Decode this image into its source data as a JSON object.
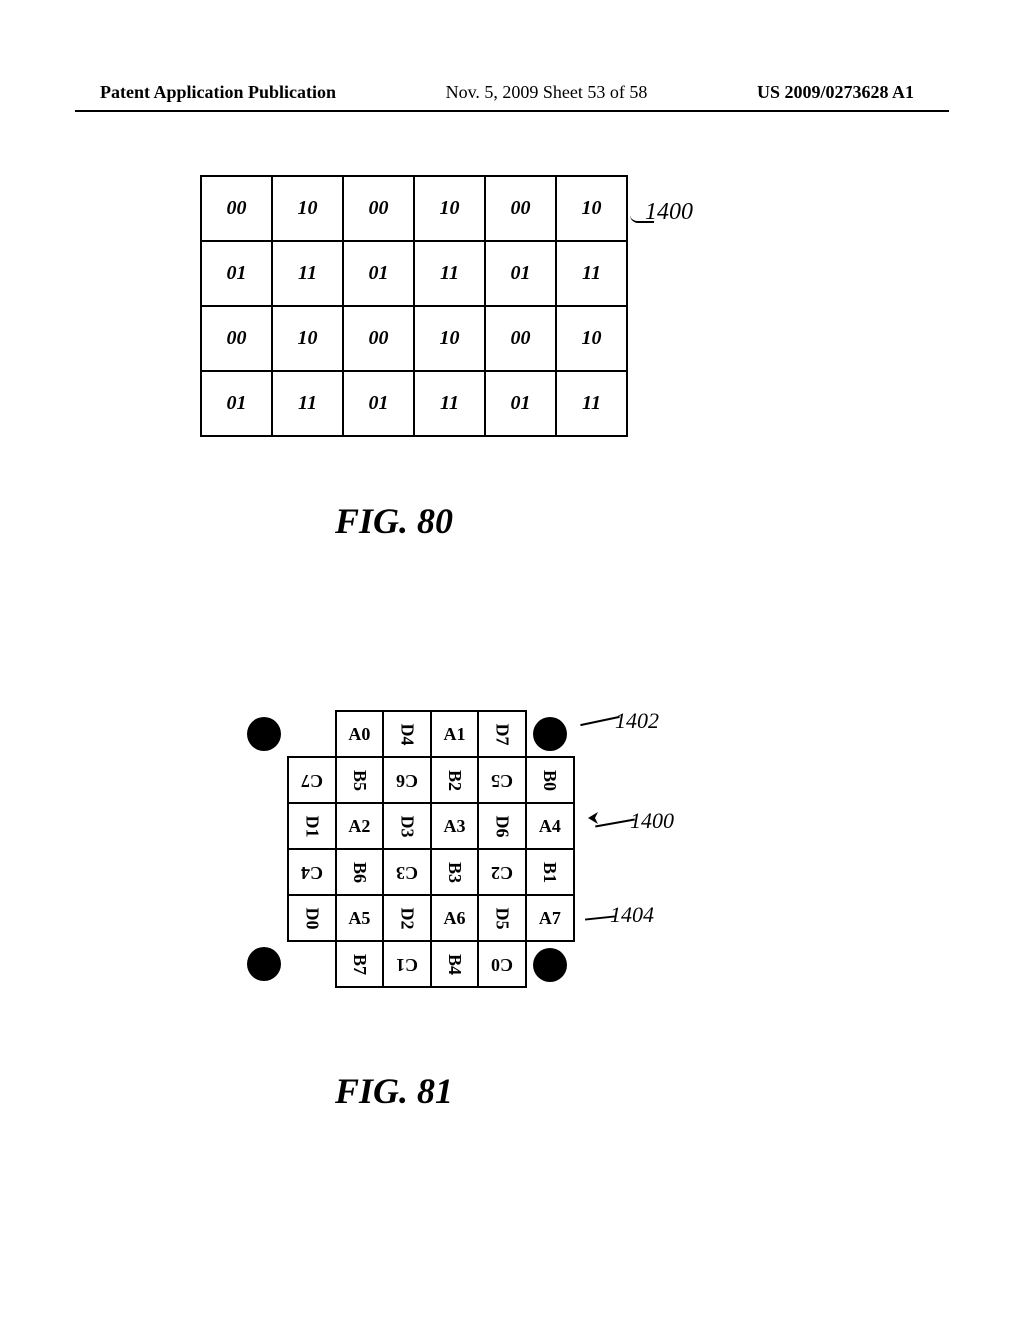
{
  "header": {
    "left": "Patent Application Publication",
    "center": "Nov. 5, 2009  Sheet 53 of 58",
    "right": "US 2009/0273628 A1"
  },
  "fig80": {
    "caption": "FIG. 80",
    "ref_label": "1400",
    "rows": [
      [
        "00",
        "10",
        "00",
        "10",
        "00",
        "10"
      ],
      [
        "01",
        "11",
        "01",
        "11",
        "01",
        "11"
      ],
      [
        "00",
        "10",
        "00",
        "10",
        "00",
        "10"
      ],
      [
        "01",
        "11",
        "01",
        "11",
        "01",
        "11"
      ]
    ]
  },
  "fig81": {
    "caption": "FIG. 81",
    "labels": {
      "ref1402": "1402",
      "ref1400": "1400",
      "ref1404": "1404"
    },
    "grid": {
      "type": "patent-grid",
      "cell_size": 48,
      "border_color": "#000000",
      "background_color": "#ffffff",
      "font_size": 18,
      "note": "0=upright, 90=rotated +90deg, 180=rotated 180deg",
      "rows": [
        [
          {
            "t": "dot"
          },
          {
            "t": "blank"
          },
          {
            "t": "cell",
            "v": "A0",
            "r": 0,
            "b": true
          },
          {
            "t": "cell",
            "v": "D4",
            "r": 90,
            "b": true
          },
          {
            "t": "cell",
            "v": "A1",
            "r": 0,
            "b": true
          },
          {
            "t": "cell",
            "v": "D7",
            "r": 90,
            "b": true
          },
          {
            "t": "dot"
          }
        ],
        [
          {
            "t": "blank"
          },
          {
            "t": "cell",
            "v": "C7",
            "r": 180,
            "b": true
          },
          {
            "t": "cell",
            "v": "B5",
            "r": 90,
            "b": true
          },
          {
            "t": "cell",
            "v": "C6",
            "r": 180,
            "b": true
          },
          {
            "t": "cell",
            "v": "B2",
            "r": 90,
            "b": true
          },
          {
            "t": "cell",
            "v": "C5",
            "r": 180,
            "b": true
          },
          {
            "t": "cell",
            "v": "B0",
            "r": 90,
            "b": true
          }
        ],
        [
          {
            "t": "blank"
          },
          {
            "t": "cell",
            "v": "D1",
            "r": 90,
            "b": true
          },
          {
            "t": "cell",
            "v": "A2",
            "r": 0,
            "b": true
          },
          {
            "t": "cell",
            "v": "D3",
            "r": 90,
            "b": true
          },
          {
            "t": "cell",
            "v": "A3",
            "r": 0,
            "b": true
          },
          {
            "t": "cell",
            "v": "D6",
            "r": 90,
            "b": true
          },
          {
            "t": "cell",
            "v": "A4",
            "r": 0,
            "b": true
          }
        ],
        [
          {
            "t": "blank"
          },
          {
            "t": "cell",
            "v": "C4",
            "r": 180,
            "b": true
          },
          {
            "t": "cell",
            "v": "B6",
            "r": 90,
            "b": true
          },
          {
            "t": "cell",
            "v": "C3",
            "r": 180,
            "b": true
          },
          {
            "t": "cell",
            "v": "B3",
            "r": 90,
            "b": true
          },
          {
            "t": "cell",
            "v": "C2",
            "r": 180,
            "b": true
          },
          {
            "t": "cell",
            "v": "B1",
            "r": 90,
            "b": true
          }
        ],
        [
          {
            "t": "blank"
          },
          {
            "t": "cell",
            "v": "D0",
            "r": 90,
            "b": true
          },
          {
            "t": "cell",
            "v": "A5",
            "r": 0,
            "b": true
          },
          {
            "t": "cell",
            "v": "D2",
            "r": 90,
            "b": true
          },
          {
            "t": "cell",
            "v": "A6",
            "r": 0,
            "b": true
          },
          {
            "t": "cell",
            "v": "D5",
            "r": 90,
            "b": true
          },
          {
            "t": "cell",
            "v": "A7",
            "r": 0,
            "b": true
          }
        ],
        [
          {
            "t": "dot"
          },
          {
            "t": "blank"
          },
          {
            "t": "cell",
            "v": "B7",
            "r": 90,
            "b": true
          },
          {
            "t": "cell",
            "v": "C1",
            "r": 180,
            "b": true
          },
          {
            "t": "cell",
            "v": "B4",
            "r": 90,
            "b": true
          },
          {
            "t": "cell",
            "v": "C0",
            "r": 180,
            "b": true
          },
          {
            "t": "dot"
          }
        ]
      ]
    }
  }
}
